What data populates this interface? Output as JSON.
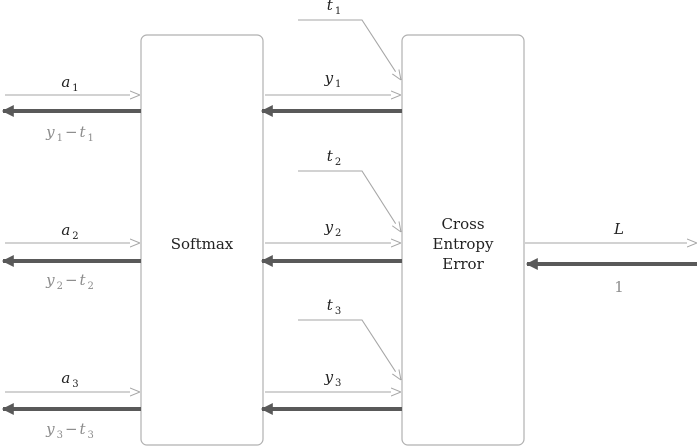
{
  "diagram": {
    "softmax_label": "Softmax",
    "cross_entropy_label": [
      "Cross",
      "Entropy",
      "Error"
    ],
    "inputs": [
      {
        "var": "a",
        "sub": "1"
      },
      {
        "var": "a",
        "sub": "2"
      },
      {
        "var": "a",
        "sub": "3"
      }
    ],
    "outputs": [
      {
        "var": "y",
        "sub": "1"
      },
      {
        "var": "y",
        "sub": "2"
      },
      {
        "var": "y",
        "sub": "3"
      }
    ],
    "targets": [
      {
        "var": "t",
        "sub": "1"
      },
      {
        "var": "t",
        "sub": "2"
      },
      {
        "var": "t",
        "sub": "3"
      }
    ],
    "gradients": [
      {
        "y": "y",
        "y_sub": "1",
        "op": "−",
        "t": "t",
        "t_sub": "1"
      },
      {
        "y": "y",
        "y_sub": "2",
        "op": "−",
        "t": "t",
        "t_sub": "2"
      },
      {
        "y": "y",
        "y_sub": "3",
        "op": "−",
        "t": "t",
        "t_sub": "3"
      }
    ],
    "loss": {
      "var": "L"
    },
    "loss_grad": "1",
    "colors": {
      "box_stroke": "#b0b0b0",
      "forward_arrow": "#a6a6a6",
      "backward_arrow": "#595959",
      "gradient_text": "#8c8c8c"
    }
  }
}
